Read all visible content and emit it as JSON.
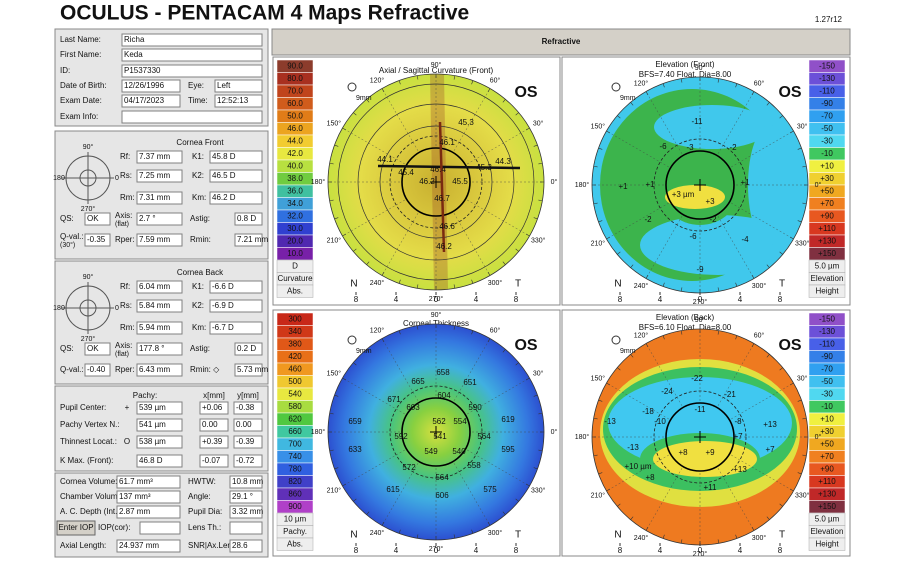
{
  "header": {
    "title": "OCULUS  -  PENTACAM   4 Maps Refractive",
    "version": "1.27r12",
    "section": "Refractive"
  },
  "patient": {
    "fields": [
      {
        "label": "Last Name:",
        "value": "Richa"
      },
      {
        "label": "First Name:",
        "value": "Keda"
      },
      {
        "label": "ID:",
        "value": "P1537330"
      },
      {
        "label": "Date of Birth:",
        "value": "12/26/1996"
      },
      {
        "label": "Eye:",
        "value": "Left"
      },
      {
        "label": "Exam Date:",
        "value": "04/17/2023"
      },
      {
        "label": "Time:",
        "value": "12:52:13"
      },
      {
        "label": "Exam Info:"
      }
    ]
  },
  "cornea_front": {
    "title": "Cornea Front",
    "diagram": [
      "90°",
      "0",
      "270°",
      "180"
    ],
    "fields": [
      {
        "label": "Rf:",
        "value": "7.37 mm"
      },
      {
        "label": "K1:",
        "value": "45.8 D"
      },
      {
        "label": "Rs:",
        "value": "7.25 mm",
        "color": "#b02020"
      },
      {
        "label": "K2:",
        "value": "46.5 D",
        "color": "#b02020"
      },
      {
        "label": "Rm:",
        "value": "7.31 mm"
      },
      {
        "label": "Km:",
        "value": "46.2 D"
      },
      {
        "label": "QS:",
        "value": "OK"
      },
      {
        "label": "Axis:",
        "sub": "(flat)",
        "value": "2.7 °"
      },
      {
        "label": "Astig:",
        "value": "0.8 D"
      },
      {
        "label": "Q-val.:",
        "sub": "(30°)",
        "value": "-0.35"
      },
      {
        "label": "Rper:",
        "value": "7.59 mm"
      },
      {
        "label": "Rmin:",
        "value": "7.21 mm"
      }
    ]
  },
  "cornea_back": {
    "title": "Cornea Back",
    "diagram": [
      "90°",
      "0",
      "270°",
      "180"
    ],
    "fields": [
      {
        "label": "Rf:",
        "value": "6.04 mm"
      },
      {
        "label": "K1:",
        "value": "-6.6 D"
      },
      {
        "label": "Rs:",
        "value": "5.84 mm",
        "color": "#b02020"
      },
      {
        "label": "K2:",
        "value": "-6.9 D",
        "color": "#b02020"
      },
      {
        "label": "Rm:",
        "value": "5.94 mm"
      },
      {
        "label": "Km:",
        "value": "-6.7 D"
      },
      {
        "label": "QS:",
        "value": "OK"
      },
      {
        "label": "Axis:",
        "sub": "(flat)",
        "value": "177.8 °"
      },
      {
        "label": "Astig:",
        "value": "0.2 D"
      },
      {
        "label": "Q-val.:",
        "value": "-0.40"
      },
      {
        "label": "Rper:",
        "value": "6.43 mm"
      },
      {
        "label": "Rmin: ◇",
        "value": "5.73 mm"
      }
    ]
  },
  "pachy": {
    "headers": [
      "Pachy:",
      "x[mm]",
      "y[mm]"
    ],
    "rows": [
      {
        "label": "Pupil Center:",
        "symbol": "+",
        "values": [
          "539 µm",
          "+0.06",
          "-0.38"
        ]
      },
      {
        "label": "Pachy Vertex N.:",
        "values": [
          "541 µm",
          "0.00",
          "0.00"
        ]
      },
      {
        "label": "Thinnest Locat.:",
        "symbol": "O",
        "values": [
          "538 µm",
          "+0.39",
          "-0.39"
        ]
      },
      {
        "label": "K Max. (Front):",
        "values": [
          "46.8 D",
          "-0.07",
          "-0.72"
        ]
      }
    ]
  },
  "volumes": {
    "button": "Enter IOP",
    "fields": [
      {
        "label": "Cornea Volume:",
        "value": "61.7 mm³"
      },
      {
        "label": "HWTW:",
        "value": "10.8 mm"
      },
      {
        "label": "Chamber Volume:",
        "value": "137 mm³"
      },
      {
        "label": "Angle:",
        "value": "29.1 °"
      },
      {
        "label": "A. C. Depth (Int.):",
        "value": "2.87 mm"
      },
      {
        "label": "Pupil Dia:",
        "value": "3.32 mm"
      },
      {
        "label": "IOP(cor):"
      },
      {
        "label": "Lens Th.:"
      },
      {
        "label": "Axial Length:",
        "value": "24.937 mm"
      },
      {
        "label": "SNR|Ax.Len",
        "value": "28.6"
      }
    ]
  },
  "maps": [
    {
      "title": "Axial / Sagittal Curvature (Front)",
      "eye": "OS",
      "zoom": "9mm",
      "nasal": "N",
      "temporal": "T",
      "axis_ticks": [
        8,
        4,
        0,
        4,
        8
      ],
      "degrees": [
        "0°",
        "30°",
        "60°",
        "90°",
        "120°",
        "150°",
        "180°",
        "210°",
        "240°",
        "270°",
        "300°",
        "330°"
      ],
      "labels": [
        "45.3",
        "46.1",
        "44.1",
        "45.4",
        "46.4",
        "45.3",
        "44.3",
        "46.2",
        "45.5",
        "46.7",
        "46.6",
        "46.2"
      ],
      "scale": {
        "labels": [
          "90.0",
          "80.0",
          "70.0",
          "60.0",
          "50.0",
          "46.0",
          "44.0",
          "42.0",
          "40.0",
          "38.0",
          "36.0",
          "34.0",
          "32.0",
          "30.0",
          "20.0",
          "10.0"
        ],
        "colors": [
          "#8c3c2c",
          "#a83020",
          "#c0441c",
          "#d05c1c",
          "#e07c18",
          "#eca420",
          "#f2cc30",
          "#e8e840",
          "#b8e040",
          "#70cc40",
          "#40c0a0",
          "#40a0d8",
          "#3070e0",
          "#3040d0",
          "#5028b0",
          "#7820a8"
        ],
        "unit": "D",
        "name": "Curvature",
        "mode": "Abs."
      }
    },
    {
      "title": "Elevation (Front)",
      "subtitle": "BFS=7.40 Float, Dia=8.00",
      "eye": "OS",
      "zoom": "9mm",
      "nasal": "N",
      "temporal": "T",
      "axis_ticks": [
        8,
        4,
        0,
        4,
        8
      ],
      "degrees": [
        "0°",
        "30°",
        "60°",
        "90°",
        "120°",
        "150°",
        "180°",
        "210°",
        "240°",
        "270°",
        "300°",
        "330°"
      ],
      "labels": [
        "-11",
        "-6",
        "-3",
        "-2",
        "+1",
        "+1",
        "+3 µm",
        "+3",
        "+1",
        "-2",
        "-2",
        "-6",
        "-9",
        "-4"
      ],
      "scale": {
        "labels": [
          "-150",
          "-130",
          "-110",
          "-90",
          "-70",
          "-50",
          "-30",
          "-10",
          "+10",
          "+30",
          "+50",
          "+70",
          "+90",
          "+110",
          "+130",
          "+150"
        ],
        "colors": [
          "#9050c8",
          "#6c50d8",
          "#4860e8",
          "#3480e8",
          "#30a0f0",
          "#40c0f0",
          "#50d8f0",
          "#40c860",
          "#f0f040",
          "#f0d030",
          "#f0a820",
          "#f08020",
          "#e85820",
          "#d83820",
          "#c02828",
          "#803040"
        ],
        "unit": "5.0 µm",
        "name": "Elevation",
        "mode": "Height"
      }
    },
    {
      "title": "Corneal Thickness",
      "eye": "OS",
      "zoom": "9mm",
      "nasal": "N",
      "temporal": "T",
      "axis_ticks": [
        8,
        4,
        0,
        4,
        8
      ],
      "degrees": [
        "0°",
        "30°",
        "60°",
        "90°",
        "120°",
        "150°",
        "180°",
        "210°",
        "240°",
        "270°",
        "300°",
        "330°"
      ],
      "labels": [
        "658",
        "665",
        "651",
        "671",
        "603",
        "604",
        "590",
        "619",
        "659",
        "562",
        "554",
        "592",
        "541",
        "564",
        "633",
        "549",
        "540",
        "595",
        "572",
        "558",
        "615",
        "564",
        "575",
        "606"
      ],
      "scale": {
        "labels": [
          "300",
          "340",
          "380",
          "420",
          "460",
          "500",
          "540",
          "580",
          "620",
          "660",
          "700",
          "740",
          "780",
          "820",
          "860",
          "900"
        ],
        "colors": [
          "#c82818",
          "#d03818",
          "#e05818",
          "#e87018",
          "#f09820",
          "#f0c830",
          "#e8e840",
          "#a8dc40",
          "#50c840",
          "#40c8a0",
          "#40b8e0",
          "#3890e8",
          "#3060e0",
          "#4040c8",
          "#6030b8",
          "#b040c8"
        ],
        "unit": "10 µm",
        "name": "Pachy.",
        "mode": "Abs."
      }
    },
    {
      "title": "Elevation (Back)",
      "subtitle": "BFS=6.10 Float, Dia=8.00",
      "eye": "OS",
      "zoom": "9mm",
      "nasal": "N",
      "temporal": "T",
      "axis_ticks": [
        8,
        4,
        0,
        4,
        8
      ],
      "degrees": [
        "0°",
        "30°",
        "60°",
        "90°",
        "120°",
        "150°",
        "180°",
        "210°",
        "240°",
        "270°",
        "300°",
        "330°"
      ],
      "labels": [
        "-22",
        "-24",
        "-21",
        "-18",
        "-13",
        "-10",
        "-11",
        "-8",
        "-13",
        "+13",
        "+7",
        "+8",
        "+9",
        "+7",
        "+10 µm",
        "+8",
        "+13",
        "+11"
      ],
      "scale": {
        "labels": [
          "-150",
          "-130",
          "-110",
          "-90",
          "-70",
          "-50",
          "-30",
          "-10",
          "+10",
          "+30",
          "+50",
          "+70",
          "+90",
          "+110",
          "+130",
          "+150"
        ],
        "colors": [
          "#9050c8",
          "#6c50d8",
          "#4860e8",
          "#3480e8",
          "#30a0f0",
          "#40c0f0",
          "#50d8f0",
          "#40c860",
          "#f0f040",
          "#f0d030",
          "#f0a820",
          "#f08020",
          "#e85820",
          "#d83820",
          "#c02828",
          "#803040"
        ],
        "unit": "5.0 µm",
        "name": "Elevation",
        "mode": "Height"
      }
    }
  ]
}
